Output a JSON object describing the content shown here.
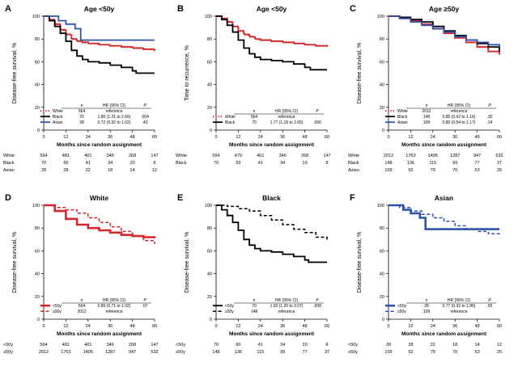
{
  "chart_data": [
    {
      "type": "line",
      "panel_label": "A",
      "title": "Age <50y",
      "ylabel": "Disease-free survival, %",
      "xlabel": "Months since random assignment",
      "xlim": [
        0,
        60
      ],
      "ylim": [
        0,
        100
      ],
      "xticks": [
        "0",
        "12",
        "24",
        "36",
        "48",
        "60"
      ],
      "yticks": [
        "0",
        "20",
        "40",
        "60",
        "80",
        "100"
      ],
      "series": [
        {
          "name": "White",
          "color": "#d7262b",
          "style": "dotted",
          "x": [
            0,
            3,
            6,
            9,
            12,
            15,
            18,
            21,
            24,
            30,
            36,
            42,
            48,
            54,
            60
          ],
          "y": [
            100,
            97,
            93,
            88,
            84,
            80,
            78,
            77,
            76,
            75,
            74,
            73,
            72,
            71,
            70
          ]
        },
        {
          "name": "Black",
          "color": "#000000",
          "style": "solid",
          "x": [
            0,
            3,
            6,
            9,
            12,
            15,
            18,
            21,
            24,
            30,
            36,
            42,
            48,
            50,
            60
          ],
          "y": [
            100,
            96,
            91,
            85,
            78,
            70,
            65,
            62,
            60,
            59,
            57,
            55,
            52,
            50,
            50
          ]
        },
        {
          "name": "Asian",
          "color": "#2f53a8",
          "style": "solid",
          "x": [
            0,
            6,
            8,
            10,
            12,
            14,
            17,
            20,
            60
          ],
          "y": [
            100,
            100,
            96,
            96,
            93,
            93,
            89,
            79,
            79
          ]
        }
      ],
      "legend": {
        "headers": [
          "n",
          "HR (95% CI)",
          "P"
        ],
        "rows": [
          {
            "label": "White",
            "n": "564",
            "hr": "reference",
            "p": ""
          },
          {
            "label": "Black",
            "n": "70",
            "hr": "1.80 (1.21 to 2.66)",
            "p": ".004"
          },
          {
            "label": "Asian",
            "n": "28",
            "hr": "0.72 (0.32 to 1.62)",
            "p": ".43"
          }
        ]
      },
      "risk_table": [
        {
          "label": "White",
          "values": [
            "564",
            "481",
            "401",
            "346",
            "268",
            "147"
          ]
        },
        {
          "label": "Black",
          "values": [
            "70",
            "60",
            "41",
            "34",
            "20",
            "8"
          ]
        },
        {
          "label": "Asian",
          "values": [
            "28",
            "28",
            "22",
            "18",
            "14",
            "12"
          ]
        }
      ]
    },
    {
      "type": "line",
      "panel_label": "B",
      "title": "Age <50y",
      "ylabel": "Time to recurrence, %",
      "xlabel": "Months since random assignment",
      "xlim": [
        0,
        60
      ],
      "ylim": [
        0,
        100
      ],
      "xticks": [
        "0",
        "12",
        "24",
        "36",
        "48",
        "60"
      ],
      "yticks": [
        "0",
        "20",
        "40",
        "60",
        "80",
        "100"
      ],
      "series": [
        {
          "name": "White",
          "color": "#d7262b",
          "style": "dotted",
          "x": [
            0,
            3,
            6,
            9,
            12,
            15,
            18,
            21,
            24,
            30,
            36,
            42,
            48,
            54,
            60
          ],
          "y": [
            100,
            98,
            95,
            91,
            87,
            84,
            82,
            80,
            79,
            78,
            77,
            76,
            75,
            74,
            73
          ]
        },
        {
          "name": "Black",
          "color": "#000000",
          "style": "solid",
          "x": [
            0,
            3,
            6,
            9,
            12,
            15,
            18,
            21,
            24,
            30,
            36,
            42,
            48,
            51,
            60
          ],
          "y": [
            100,
            97,
            92,
            86,
            79,
            72,
            67,
            64,
            62,
            61,
            60,
            58,
            55,
            53,
            53
          ]
        }
      ],
      "legend": {
        "headers": [
          "n",
          "HR (95% CI)",
          "P"
        ],
        "rows": [
          {
            "label": "White",
            "n": "564",
            "hr": "reference",
            "p": ""
          },
          {
            "label": "Black",
            "n": "70",
            "hr": "1.77 (1.18 to 2.65)",
            "p": ".006"
          }
        ]
      },
      "risk_table": [
        {
          "label": "White",
          "values": [
            "564",
            "479",
            "401",
            "346",
            "268",
            "147"
          ]
        },
        {
          "label": "Black",
          "values": [
            "70",
            "59",
            "41",
            "34",
            "19",
            "8"
          ]
        }
      ]
    },
    {
      "type": "line",
      "panel_label": "C",
      "title": "Age ≥50y",
      "ylabel": "Disease-free survival, %",
      "xlabel": "Months since random assignment",
      "xlim": [
        0,
        60
      ],
      "ylim": [
        0,
        100
      ],
      "xticks": [
        "0",
        "12",
        "24",
        "36",
        "48",
        "60"
      ],
      "yticks": [
        "0",
        "20",
        "40",
        "60",
        "80",
        "100"
      ],
      "series": [
        {
          "name": "White",
          "color": "#d7262b",
          "style": "dotted",
          "x": [
            0,
            6,
            12,
            18,
            24,
            30,
            36,
            42,
            48,
            54,
            60
          ],
          "y": [
            100,
            98,
            96,
            93,
            89,
            85,
            81,
            77,
            73,
            69,
            66
          ]
        },
        {
          "name": "Black",
          "color": "#000000",
          "style": "solid",
          "x": [
            0,
            6,
            12,
            18,
            24,
            30,
            36,
            42,
            48,
            54,
            60
          ],
          "y": [
            100,
            99,
            97,
            95,
            91,
            87,
            83,
            79,
            76,
            73,
            69
          ]
        },
        {
          "name": "Asian",
          "color": "#2f53a8",
          "style": "solid",
          "x": [
            0,
            6,
            12,
            18,
            24,
            30,
            36,
            42,
            48,
            54,
            60
          ],
          "y": [
            100,
            98,
            95,
            92,
            89,
            86,
            82,
            79,
            77,
            75,
            73
          ]
        }
      ],
      "legend": {
        "headers": [
          "n",
          "HR (95% CI)",
          "P"
        ],
        "rows": [
          {
            "label": "White",
            "n": "2012",
            "hr": "reference",
            "p": ""
          },
          {
            "label": "Black",
            "n": "148",
            "hr": "0.85 (0.62 to 1.16)",
            "p": ".30"
          },
          {
            "label": "Asian",
            "n": "109",
            "hr": "0.80 (0.54 to 1.17)",
            "p": ".24"
          }
        ]
      },
      "risk_table": [
        {
          "label": "White",
          "values": [
            "2012",
            "1763",
            "1495",
            "1287",
            "947",
            "532"
          ]
        },
        {
          "label": "Black",
          "values": [
            "148",
            "136",
            "115",
            "99",
            "77",
            "37"
          ]
        },
        {
          "label": "Asian",
          "values": [
            "109",
            "92",
            "79",
            "70",
            "53",
            "26"
          ]
        }
      ]
    },
    {
      "type": "line",
      "panel_label": "D",
      "title": "White",
      "ylabel": "Disease-free survival, %",
      "xlabel": "Months since random assignment",
      "xlim": [
        0,
        60
      ],
      "ylim": [
        0,
        100
      ],
      "xticks": [
        "0",
        "12",
        "24",
        "36",
        "48",
        "60"
      ],
      "yticks": [
        "0",
        "20",
        "40",
        "60",
        "80",
        "100"
      ],
      "series": [
        {
          "name": "<50y",
          "color": "#d7262b",
          "style": "solid-thick",
          "x": [
            0,
            6,
            12,
            18,
            24,
            30,
            36,
            42,
            48,
            54,
            60
          ],
          "y": [
            100,
            95,
            88,
            83,
            80,
            78,
            76,
            74,
            73,
            72,
            71
          ]
        },
        {
          "name": "≥50y",
          "color": "#d7262b",
          "style": "dashed",
          "x": [
            0,
            6,
            12,
            18,
            24,
            30,
            36,
            42,
            48,
            54,
            60
          ],
          "y": [
            100,
            98,
            96,
            93,
            89,
            85,
            81,
            77,
            73,
            69,
            66
          ]
        }
      ],
      "legend": {
        "headers": [
          "n",
          "HR (95% CI)",
          "P"
        ],
        "rows": [
          {
            "label": "<50y",
            "n": "564",
            "hr": "0.85 (0.71 to 1.02)",
            "p": ".07"
          },
          {
            "label": "≥50y",
            "n": "2012",
            "hr": "reference",
            "p": ""
          }
        ]
      },
      "risk_table": [
        {
          "label": "<50y",
          "values": [
            "564",
            "481",
            "401",
            "346",
            "268",
            "147"
          ]
        },
        {
          "label": "≥50y",
          "values": [
            "2012",
            "1763",
            "1495",
            "1287",
            "947",
            "532"
          ]
        }
      ]
    },
    {
      "type": "line",
      "panel_label": "E",
      "title": "Black",
      "ylabel": "Disease-free survival, %",
      "xlabel": "Months since random assignment",
      "xlim": [
        0,
        60
      ],
      "ylim": [
        0,
        100
      ],
      "xticks": [
        "0",
        "12",
        "24",
        "36",
        "48",
        "60"
      ],
      "yticks": [
        "0",
        "20",
        "40",
        "60",
        "80",
        "100"
      ],
      "series": [
        {
          "name": "<50y",
          "color": "#000000",
          "style": "solid",
          "x": [
            0,
            3,
            6,
            9,
            12,
            15,
            18,
            21,
            24,
            30,
            36,
            42,
            48,
            50,
            60
          ],
          "y": [
            100,
            96,
            91,
            85,
            78,
            70,
            65,
            62,
            60,
            59,
            57,
            55,
            52,
            50,
            50
          ]
        },
        {
          "name": "≥50y",
          "color": "#000000",
          "style": "dashed",
          "x": [
            0,
            6,
            12,
            18,
            24,
            30,
            36,
            42,
            48,
            54,
            60
          ],
          "y": [
            100,
            99,
            97,
            95,
            91,
            87,
            83,
            79,
            76,
            72,
            69
          ]
        }
      ],
      "legend": {
        "headers": [
          "n",
          "HR (95% CI)",
          "P"
        ],
        "rows": [
          {
            "label": "<50y",
            "n": "70",
            "hr": "1.92 (1.20 to 3.07)",
            "p": ".008"
          },
          {
            "label": "≥50y",
            "n": "148",
            "hr": "reference",
            "p": ""
          }
        ]
      },
      "risk_table": [
        {
          "label": "<50y",
          "values": [
            "70",
            "60",
            "41",
            "34",
            "20",
            "8"
          ]
        },
        {
          "label": "≥50y",
          "values": [
            "148",
            "136",
            "115",
            "99",
            "77",
            "37"
          ]
        }
      ]
    },
    {
      "type": "line",
      "panel_label": "F",
      "title": "Asian",
      "ylabel": "Disease-free survival, %",
      "xlabel": "Months since random assignment",
      "xlim": [
        0,
        60
      ],
      "ylim": [
        0,
        100
      ],
      "xticks": [
        "0",
        "12",
        "24",
        "36",
        "48",
        "60"
      ],
      "yticks": [
        "0",
        "20",
        "40",
        "60",
        "80",
        "100"
      ],
      "series": [
        {
          "name": "<50y",
          "color": "#2f53a8",
          "style": "solid-thick",
          "x": [
            0,
            6,
            8,
            10,
            12,
            14,
            17,
            20,
            60
          ],
          "y": [
            100,
            100,
            96,
            96,
            93,
            93,
            89,
            79,
            79
          ]
        },
        {
          "name": "≥50y",
          "color": "#2f53a8",
          "style": "dashed",
          "x": [
            0,
            6,
            12,
            18,
            24,
            30,
            36,
            42,
            48,
            54,
            60
          ],
          "y": [
            100,
            98,
            95,
            92,
            89,
            86,
            82,
            79,
            77,
            75,
            73
          ]
        }
      ],
      "legend": {
        "headers": [
          "n",
          "HR (95% CI)",
          "P"
        ],
        "rows": [
          {
            "label": "<50y",
            "n": "28",
            "hr": "0.77 (0.32 to 1.86)",
            "p": ".55"
          },
          {
            "label": "≥50y",
            "n": "109",
            "hr": "reference",
            "p": ""
          }
        ]
      },
      "risk_table": [
        {
          "label": "<50y",
          "values": [
            "28",
            "28",
            "22",
            "18",
            "14",
            "12"
          ]
        },
        {
          "label": "≥50y",
          "values": [
            "109",
            "92",
            "79",
            "70",
            "53",
            "26"
          ]
        }
      ]
    }
  ]
}
